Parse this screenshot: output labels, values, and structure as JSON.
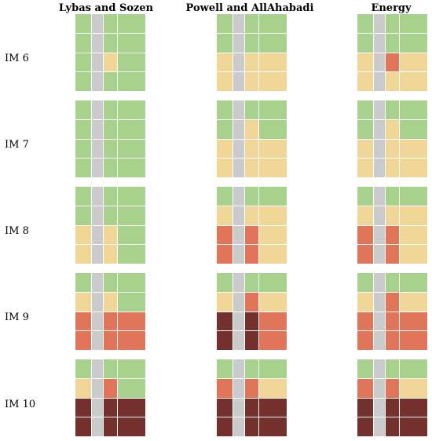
{
  "columns": [
    "Lybas and Sozen",
    "Powell and AllAhabadi",
    "Energy"
  ],
  "rows": [
    {
      "label": "IM 6",
      "grids": [
        [
          [
            "g",
            "x",
            "g",
            "g"
          ],
          [
            "g",
            "x",
            "g",
            "g"
          ],
          [
            "g",
            "x",
            "y",
            "g"
          ],
          [
            "g",
            "x",
            "g",
            "g"
          ]
        ],
        [
          [
            "g",
            "x",
            "g",
            "g"
          ],
          [
            "g",
            "x",
            "g",
            "g"
          ],
          [
            "y",
            "x",
            "y",
            "y"
          ],
          [
            "y",
            "x",
            "y",
            "y"
          ]
        ],
        [
          [
            "g",
            "x",
            "g",
            "g"
          ],
          [
            "g",
            "x",
            "g",
            "g"
          ],
          [
            "y",
            "x",
            "o",
            "y"
          ],
          [
            "y",
            "x",
            "y",
            "y"
          ]
        ]
      ]
    },
    {
      "label": "IM 7",
      "grids": [
        [
          [
            "g",
            "x",
            "g",
            "g"
          ],
          [
            "g",
            "x",
            "g",
            "g"
          ],
          [
            "g",
            "x",
            "g",
            "g"
          ],
          [
            "g",
            "x",
            "g",
            "g"
          ]
        ],
        [
          [
            "g",
            "x",
            "g",
            "g"
          ],
          [
            "g",
            "x",
            "y",
            "g"
          ],
          [
            "y",
            "x",
            "y",
            "y"
          ],
          [
            "y",
            "x",
            "y",
            "y"
          ]
        ],
        [
          [
            "g",
            "x",
            "g",
            "g"
          ],
          [
            "g",
            "x",
            "y",
            "g"
          ],
          [
            "y",
            "x",
            "y",
            "y"
          ],
          [
            "y",
            "x",
            "y",
            "y"
          ]
        ]
      ]
    },
    {
      "label": "IM 8",
      "grids": [
        [
          [
            "g",
            "x",
            "g",
            "g"
          ],
          [
            "g",
            "x",
            "g",
            "g"
          ],
          [
            "y",
            "x",
            "y",
            "g"
          ],
          [
            "y",
            "x",
            "y",
            "g"
          ]
        ],
        [
          [
            "g",
            "x",
            "g",
            "g"
          ],
          [
            "y",
            "x",
            "y",
            "y"
          ],
          [
            "o",
            "x",
            "o",
            "y"
          ],
          [
            "o",
            "x",
            "o",
            "y"
          ]
        ],
        [
          [
            "g",
            "x",
            "g",
            "g"
          ],
          [
            "y",
            "x",
            "y",
            "y"
          ],
          [
            "o",
            "x",
            "o",
            "y"
          ],
          [
            "o",
            "x",
            "o",
            "y"
          ]
        ]
      ]
    },
    {
      "label": "IM 9",
      "grids": [
        [
          [
            "g",
            "x",
            "g",
            "g"
          ],
          [
            "y",
            "x",
            "y",
            "g"
          ],
          [
            "o",
            "x",
            "o",
            "o"
          ],
          [
            "o",
            "x",
            "o",
            "o"
          ]
        ],
        [
          [
            "g",
            "x",
            "g",
            "g"
          ],
          [
            "y",
            "x",
            "o",
            "y"
          ],
          [
            "d",
            "x",
            "d",
            "o"
          ],
          [
            "d",
            "x",
            "d",
            "o"
          ]
        ],
        [
          [
            "g",
            "x",
            "g",
            "g"
          ],
          [
            "y",
            "x",
            "o",
            "y"
          ],
          [
            "o",
            "x",
            "o",
            "o"
          ],
          [
            "o",
            "x",
            "o",
            "o"
          ]
        ]
      ]
    },
    {
      "label": "IM 10",
      "grids": [
        [
          [
            "g",
            "x",
            "g",
            "g"
          ],
          [
            "y",
            "x",
            "o",
            "g"
          ],
          [
            "d",
            "x",
            "d",
            "d"
          ],
          [
            "d",
            "x",
            "d",
            "d"
          ]
        ],
        [
          [
            "g",
            "x",
            "g",
            "g"
          ],
          [
            "o",
            "x",
            "o",
            "y"
          ],
          [
            "d",
            "x",
            "d",
            "d"
          ],
          [
            "d",
            "x",
            "d",
            "d"
          ]
        ],
        [
          [
            "g",
            "x",
            "g",
            "g"
          ],
          [
            "o",
            "x",
            "o",
            "y"
          ],
          [
            "d",
            "x",
            "d",
            "d"
          ],
          [
            "d",
            "x",
            "d",
            "d"
          ]
        ]
      ]
    }
  ],
  "colors": {
    "g": "#a9d18e",
    "y": "#f0d697",
    "o": "#e07559",
    "d": "#74302c",
    "x": "#cbcbcb"
  }
}
